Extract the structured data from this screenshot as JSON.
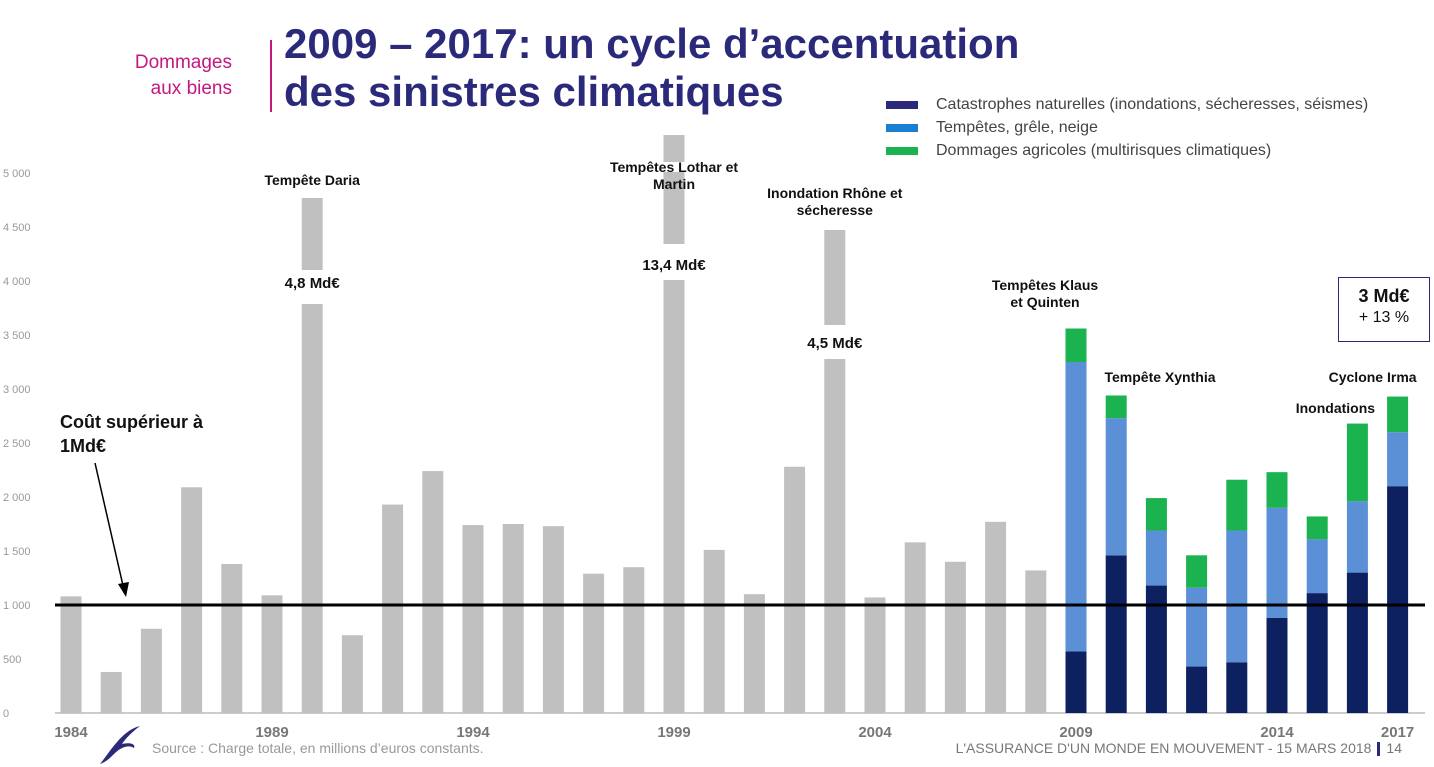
{
  "header": {
    "section_line1": "Dommages",
    "section_line2": "aux biens",
    "title_line1": "2009 – 2017: un cycle d’accentuation",
    "title_line2": "des sinistres climatiques"
  },
  "footer": {
    "source": "Source : Charge totale, en millions d’euros constants.",
    "event": "L'ASSURANCE D'UN MONDE EN MOUVEMENT - 15 MARS 2018",
    "page": "14"
  },
  "callout": {
    "main": "3 Md€",
    "sub": "+ 13 %"
  },
  "threshold": {
    "label_line1": "Coût supérieur à",
    "label_line2": "1Md€",
    "value": 1000
  },
  "colors": {
    "grey": "#c0c0c0",
    "cat_nat": "#0d2060",
    "tempetes": "#5b8fd6",
    "agricole": "#1ab34f",
    "legend_tempetes": "#1a7fd1"
  },
  "chart_data": {
    "type": "bar",
    "title": "2009 – 2017: un cycle d’accentuation des sinistres climatiques",
    "xlabel": "",
    "ylabel": "",
    "ylim": [
      0,
      5000
    ],
    "yticks": [
      0,
      500,
      1000,
      1500,
      2000,
      2500,
      3000,
      3500,
      4000,
      4500,
      5000
    ],
    "ytick_labels": [
      "0",
      "500",
      "1 000",
      "1 500",
      "2 000",
      "2 500",
      "3 000",
      "3 500",
      "4 000",
      "4 500",
      "5 000"
    ],
    "xtick_labels": [
      "1984",
      "1989",
      "1994",
      "1999",
      "2004",
      "2009",
      "2014",
      "2017"
    ],
    "years": [
      1984,
      1985,
      1986,
      1987,
      1988,
      1989,
      1990,
      1991,
      1992,
      1993,
      1994,
      1995,
      1996,
      1997,
      1998,
      1999,
      2000,
      2001,
      2002,
      2003,
      2004,
      2005,
      2006,
      2007,
      2008,
      2009,
      2010,
      2011,
      2012,
      2013,
      2014,
      2015,
      2016,
      2017
    ],
    "total_grey": [
      1080,
      380,
      780,
      2090,
      1380,
      1090,
      4800,
      720,
      1930,
      2240,
      1740,
      1750,
      1730,
      1290,
      1350,
      13400,
      1510,
      1100,
      2280,
      4500,
      1070,
      1580,
      1400,
      1770,
      1320,
      null,
      null,
      null,
      null,
      null,
      null,
      null,
      null,
      null
    ],
    "broken_axis_years": [
      1990,
      1999,
      2003
    ],
    "legend": [
      "Catastrophes naturelles (inondations, sécheresses, séismes)",
      "Tempêtes, grêle, neige",
      "Dommages agricoles (multirisques climatiques)"
    ],
    "legend_position": "top-right",
    "series": [
      {
        "name": "Catastrophes naturelles (inondations, sécheresses, séismes)",
        "years": [
          2009,
          2010,
          2011,
          2012,
          2013,
          2014,
          2015,
          2016,
          2017
        ],
        "values": [
          570,
          1460,
          1180,
          430,
          470,
          880,
          1110,
          1300,
          2100
        ]
      },
      {
        "name": "Tempêtes, grêle, neige",
        "years": [
          2009,
          2010,
          2011,
          2012,
          2013,
          2014,
          2015,
          2016,
          2017
        ],
        "values": [
          2680,
          1270,
          510,
          730,
          1220,
          1020,
          500,
          660,
          500
        ]
      },
      {
        "name": "Dommages agricoles (multirisques climatiques)",
        "years": [
          2009,
          2010,
          2011,
          2012,
          2013,
          2014,
          2015,
          2016,
          2017
        ],
        "values": [
          310,
          210,
          300,
          300,
          470,
          330,
          210,
          720,
          330
        ]
      }
    ],
    "annotations": [
      {
        "year": 1990,
        "text": "Tempête Daria",
        "value_label": "4,8 Md€"
      },
      {
        "year": 1999,
        "text": "Tempêtes Lothar et Martin",
        "value_label": "13,4 Md€"
      },
      {
        "year": 2003,
        "text": "Inondation Rhône et sécheresse",
        "value_label": "4,5 Md€"
      },
      {
        "year": 2009,
        "text": "Tempêtes Klaus et Quinten"
      },
      {
        "year": 2010,
        "text": "Tempête Xynthia"
      },
      {
        "year": 2016,
        "text": "Inondations"
      },
      {
        "year": 2017,
        "text": "Cyclone Irma"
      }
    ]
  }
}
